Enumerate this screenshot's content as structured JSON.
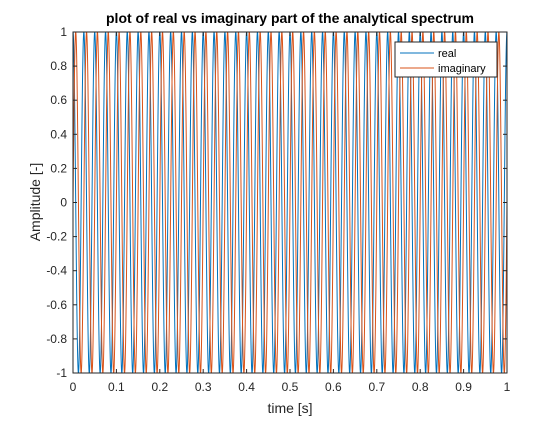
{
  "chart_data": {
    "type": "line",
    "title": "plot of real vs imaginary part of the analytical spectrum",
    "xlabel": "time [s]",
    "ylabel": "Amplitude [-]",
    "xlim": [
      0,
      1
    ],
    "ylim": [
      -1,
      1
    ],
    "xticks": [
      0,
      0.1,
      0.2,
      0.3,
      0.4,
      0.5,
      0.6,
      0.7,
      0.8,
      0.9,
      1
    ],
    "xtick_labels": [
      "0",
      "0.1",
      "0.2",
      "0.3",
      "0.4",
      "0.5",
      "0.6",
      "0.7",
      "0.8",
      "0.9",
      "1"
    ],
    "yticks": [
      -1,
      -0.8,
      -0.6,
      -0.4,
      -0.2,
      0,
      0.2,
      0.4,
      0.6,
      0.8,
      1
    ],
    "ytick_labels": [
      "-1",
      "-0.8",
      "-0.6",
      "-0.4",
      "-0.2",
      "0",
      "0.2",
      "0.4",
      "0.6",
      "0.8",
      "1"
    ],
    "grid": false,
    "legend_position": "top-right",
    "series": [
      {
        "name": "real",
        "function": "cos",
        "frequency_hz": 40,
        "amplitude": 1,
        "color": "#0072BD"
      },
      {
        "name": "imaginary",
        "function": "sin",
        "frequency_hz": 40,
        "amplitude": 1,
        "color": "#D95319"
      }
    ]
  }
}
